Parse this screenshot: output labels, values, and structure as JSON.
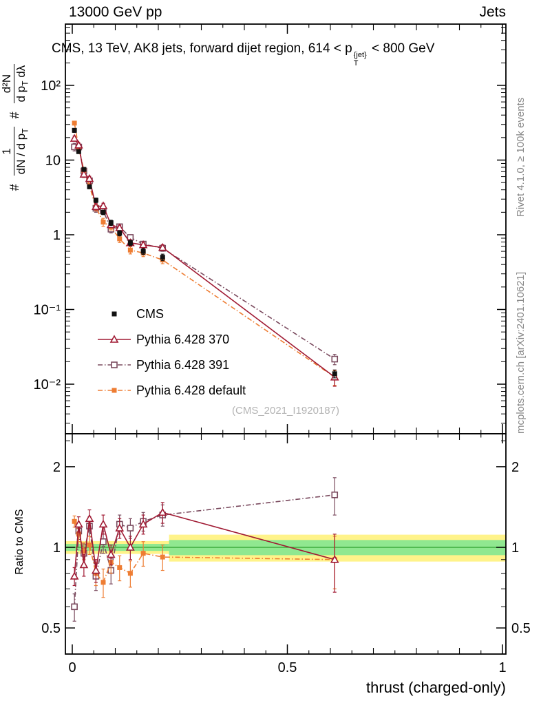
{
  "header": {
    "left": "13000 GeV pp",
    "right": "Jets"
  },
  "title": {
    "prefix": "CMS, 13 TeV, AK8 jets, forward dijet region, 614 <",
    "p": "p",
    "sup": "{jet}",
    "sub": "T",
    "suffix": "< 800 GeV"
  },
  "yaxis": {
    "hash": "#",
    "f1_num": "1",
    "f1_den_pre": "dN / d p",
    "f1_den_sub": "T",
    "f2_num": "d²N",
    "f2_den_pre": "d p",
    "f2_den_sub": "T",
    "f2_den_post": " dλ"
  },
  "side": {
    "rivet": "Rivet 4.1.0, ≥ 100k events",
    "mcplots": "mcplots.cern.ch [arXiv:2401.10621]"
  },
  "watermark": "(CMS_2021_I1920187)",
  "ratio_label": "Ratio to CMS",
  "xlabel": "thrust (charged-only)",
  "chart_data": {
    "type": "line",
    "title": "CMS, 13 TeV, AK8 jets, forward dijet region, 614 < pT{jet} < 800 GeV",
    "xlabel": "thrust (charged-only)",
    "ylabel": "1/(dN/dpT) d²N/(dpT dλ)",
    "ratio_ylabel": "Ratio to CMS",
    "x_range": [
      -0.016,
      1.008
    ],
    "main_y_range": [
      0.00217,
      660
    ],
    "main_y_scale": "log",
    "ratio_y_range": [
      0.4,
      2.66
    ],
    "ratio_y_scale": "log",
    "legend_position": "middle-left",
    "grid": false,
    "x": [
      0.005,
      0.015,
      0.027,
      0.04,
      0.055,
      0.072,
      0.09,
      0.11,
      0.135,
      0.165,
      0.21,
      0.61
    ],
    "series": [
      {
        "name": "CMS",
        "color": "#111111",
        "marker": "square-filled",
        "line": "none",
        "values": [
          25,
          13,
          7.5,
          4.4,
          2.9,
          2.0,
          1.45,
          1.05,
          0.78,
          0.6,
          0.5,
          0.0138
        ],
        "rel_err": [
          0.06,
          0.06,
          0.06,
          0.06,
          0.07,
          0.07,
          0.08,
          0.08,
          0.08,
          0.09,
          0.1,
          0.12
        ]
      },
      {
        "name": "Pythia 6.428 370",
        "color": "#a01a33",
        "marker": "triangle-open",
        "line": "solid",
        "ratio": [
          0.78,
          1.22,
          0.86,
          1.28,
          0.82,
          1.22,
          0.94,
          1.18,
          1.0,
          1.22,
          1.35,
          0.9
        ],
        "ratio_err": [
          0.06,
          0.08,
          0.08,
          0.1,
          0.08,
          0.1,
          0.08,
          0.1,
          0.1,
          0.1,
          0.12,
          0.22
        ]
      },
      {
        "name": "Pythia 6.428 391",
        "color": "#7a4a5e",
        "marker": "square-open",
        "line": "dashdot",
        "ratio": [
          0.6,
          1.15,
          0.95,
          1.2,
          0.78,
          1.05,
          0.82,
          1.22,
          1.18,
          1.25,
          1.32,
          1.57
        ],
        "ratio_err": [
          0.07,
          0.08,
          0.08,
          0.1,
          0.09,
          0.1,
          0.09,
          0.1,
          0.1,
          0.1,
          0.12,
          0.25
        ]
      },
      {
        "name": "Pythia 6.428 default",
        "color": "#ee7d33",
        "marker": "square-filled",
        "line": "dashdot",
        "ratio": [
          1.25,
          1.12,
          0.97,
          1.02,
          0.8,
          0.74,
          0.88,
          0.84,
          0.8,
          0.95,
          0.92,
          0.9
        ],
        "ratio_err": [
          0.06,
          0.07,
          0.07,
          0.08,
          0.08,
          0.09,
          0.08,
          0.09,
          0.09,
          0.1,
          0.1,
          0.2
        ]
      }
    ],
    "axes": {
      "x_ticks": [
        {
          "v": 0,
          "label": "0"
        },
        {
          "v": 0.5,
          "label": "0.5"
        },
        {
          "v": 1,
          "label": "1"
        }
      ],
      "main_y_ticks": [
        {
          "v": 100,
          "label": "10²"
        },
        {
          "v": 10,
          "label": "10"
        },
        {
          "v": 1,
          "label": "1"
        },
        {
          "v": 0.1,
          "label": "10⁻¹"
        },
        {
          "v": 0.01,
          "label": "10⁻²"
        }
      ],
      "ratio_y_ticks": [
        {
          "v": 0.5,
          "label": "0.5"
        },
        {
          "v": 1,
          "label": "1"
        },
        {
          "v": 2,
          "label": "2"
        }
      ]
    },
    "bands": {
      "yellow": "#fff38a",
      "green": "#90e890",
      "line": "#2ca02c",
      "segments": [
        {
          "x0": -0.016,
          "x1": 0.225,
          "green_half": 0.03,
          "yellow_half": 0.055
        },
        {
          "x0": 0.225,
          "x1": 1.008,
          "green_half": 0.065,
          "yellow_half": 0.115
        }
      ]
    }
  }
}
